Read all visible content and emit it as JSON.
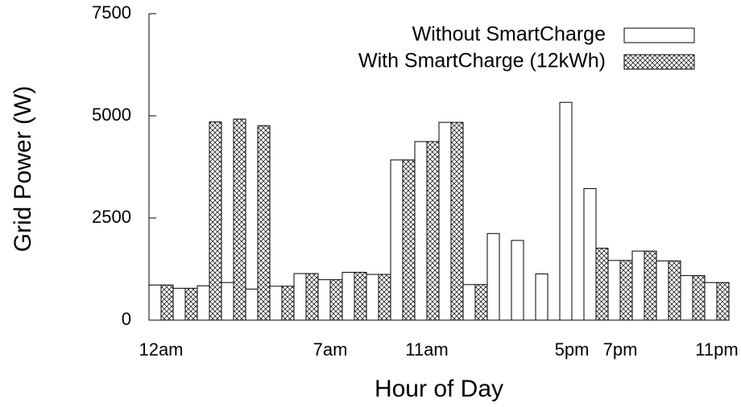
{
  "chart_data": {
    "type": "bar",
    "x_label": "Hour of Day",
    "y_label": "Grid Power (W)",
    "categories": [
      "12am",
      null,
      null,
      null,
      null,
      null,
      null,
      "7am",
      null,
      null,
      null,
      "11am",
      null,
      null,
      null,
      null,
      null,
      "5pm",
      null,
      "7pm",
      null,
      null,
      null,
      "11pm"
    ],
    "series": [
      {
        "name": "Without SmartCharge",
        "color": "#ffffff",
        "values": [
          860,
          780,
          840,
          920,
          760,
          830,
          1140,
          990,
          1170,
          1120,
          3920,
          4370,
          4840,
          870,
          2120,
          1950,
          1130,
          5330,
          3220,
          1460,
          1690,
          1450,
          1090,
          920
        ]
      },
      {
        "name": "With SmartCharge (12kWh)",
        "color": "#000000",
        "values": [
          860,
          780,
          4850,
          4920,
          4760,
          830,
          1140,
          990,
          1170,
          1120,
          3920,
          4370,
          4840,
          870,
          0,
          0,
          0,
          0,
          1760,
          1460,
          1690,
          1450,
          1090,
          920
        ]
      }
    ],
    "ylim": [
      0,
      7500
    ],
    "yticks": [
      0,
      2500,
      5000,
      7500
    ],
    "grid": false,
    "legend": "top-right"
  }
}
